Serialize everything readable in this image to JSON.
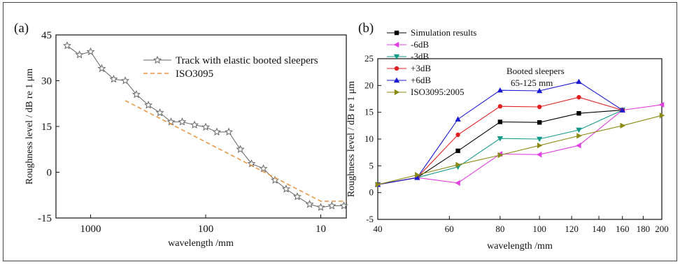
{
  "chart_data": [
    {
      "panel": "(a)",
      "type": "line",
      "x_scale": "log",
      "x_reversed": true,
      "xlabel": "wavelength /mm",
      "ylabel": "Roughness level / dB re 1 μm",
      "xlim": [
        2000,
        6
      ],
      "ylim": [
        -15,
        45
      ],
      "x_ticks": [
        1000,
        100,
        10
      ],
      "x_tick_labels": [
        "1000",
        "100",
        "10"
      ],
      "y_ticks": [
        -15,
        0,
        15,
        30,
        45
      ],
      "y_tick_labels": [
        "-15",
        "0",
        "15",
        "30",
        "45"
      ],
      "legend_position": "top-right",
      "series": [
        {
          "name": "Track with elastic booted sleepers",
          "color": "#666666",
          "marker": "star",
          "dash": "",
          "x": [
            1600,
            1250,
            1000,
            800,
            630,
            500,
            400,
            315,
            250,
            200,
            160,
            125,
            100,
            80,
            63,
            50,
            40,
            31.5,
            25,
            20,
            16,
            12.5,
            10,
            8,
            6.3
          ],
          "values": [
            41.5,
            38.5,
            39.5,
            34,
            30.5,
            30,
            25.5,
            22,
            19.5,
            16.5,
            16.5,
            15.5,
            14.8,
            13.2,
            13.2,
            7.5,
            2.8,
            1.2,
            -2.6,
            -5.5,
            -8,
            -10.5,
            -11.5,
            -11,
            -11
          ]
        },
        {
          "name": "ISO3095",
          "color": "#e8923c",
          "marker": "none",
          "dash": "6,4",
          "x": [
            500,
            10,
            6
          ],
          "values": [
            23.5,
            -9.5,
            -9.5
          ]
        }
      ]
    },
    {
      "panel": "(b)",
      "type": "line",
      "x_scale": "log",
      "xlabel": "wavelength /mm",
      "ylabel": "Roughness level / dB re 1 μm",
      "xlim": [
        40,
        200
      ],
      "ylim": [
        -5,
        25
      ],
      "x_ticks": [
        40,
        60,
        80,
        100,
        120,
        140,
        160,
        180,
        200
      ],
      "x_tick_labels": [
        "40",
        "60",
        "80",
        "100",
        "120",
        "140",
        "160",
        "180",
        "200"
      ],
      "y_ticks": [
        -5,
        0,
        5,
        10,
        15,
        20,
        25
      ],
      "y_tick_labels": [
        "-5",
        "0",
        "5",
        "10",
        "15",
        "20",
        "25"
      ],
      "x": [
        40,
        50,
        63,
        80,
        100,
        125,
        160,
        200
      ],
      "annotation_line1": "Booted sleepers",
      "annotation_line2": "65-125 mm",
      "legend_position": "top-left",
      "series": [
        {
          "name": "Simulation results",
          "color": "#000000",
          "marker": "square",
          "values": [
            1.5,
            2.8,
            7.8,
            13.2,
            13.1,
            14.8,
            15.4,
            null
          ]
        },
        {
          "name": "-6dB",
          "color": "#e040e0",
          "marker": "tri-left",
          "values": [
            1.5,
            2.8,
            1.8,
            7.2,
            7.1,
            8.8,
            15.4,
            16.4
          ]
        },
        {
          "name": "-3dB",
          "color": "#159a8a",
          "marker": "tri-down",
          "values": [
            1.5,
            2.8,
            4.8,
            10.1,
            10.0,
            11.7,
            15.4,
            null
          ]
        },
        {
          "name": "+3dB",
          "color": "#e02020",
          "marker": "circle",
          "values": [
            1.5,
            2.8,
            10.8,
            16.1,
            16.0,
            17.8,
            15.4,
            null
          ]
        },
        {
          "name": "+6dB",
          "color": "#1a1ad0",
          "marker": "tri-up",
          "values": [
            1.5,
            2.8,
            13.7,
            19.1,
            19.0,
            20.7,
            15.4,
            null
          ]
        },
        {
          "name": "ISO3095:2005",
          "color": "#8a8a14",
          "marker": "tri-right",
          "values": [
            1.5,
            3.3,
            5.2,
            7.0,
            8.8,
            10.6,
            12.5,
            14.4
          ]
        }
      ]
    }
  ]
}
